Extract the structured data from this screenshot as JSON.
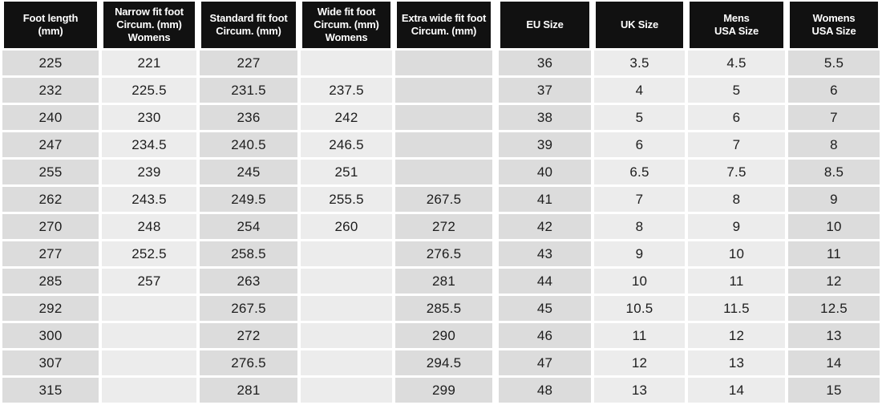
{
  "colors": {
    "page_bg": "#ffffff",
    "header_bg": "#111111",
    "header_text": "#ffffff",
    "cell_dark": "#dcdcdc",
    "cell_light": "#ececec",
    "cell_text": "#1d1d1d"
  },
  "chart_data": {
    "type": "table",
    "columns": [
      {
        "label": "Foot length\n(mm)",
        "tone": "dark"
      },
      {
        "label": "Narrow fit foot\nCircum. (mm)\nWomens",
        "tone": "light"
      },
      {
        "label": "Standard fit foot\nCircum. (mm)",
        "tone": "dark"
      },
      {
        "label": "Wide fit foot\nCircum. (mm)\nWomens",
        "tone": "light"
      },
      {
        "label": "Extra wide fit foot\nCircum. (mm)",
        "tone": "dark"
      },
      {
        "label": "EU Size",
        "tone": "dark"
      },
      {
        "label": "UK Size",
        "tone": "light"
      },
      {
        "label": "Mens\nUSA Size",
        "tone": "light"
      },
      {
        "label": "Womens\nUSA Size",
        "tone": "dark"
      }
    ],
    "rows": [
      [
        "225",
        "221",
        "227",
        "",
        "",
        "36",
        "3.5",
        "4.5",
        "5.5"
      ],
      [
        "232",
        "225.5",
        "231.5",
        "237.5",
        "",
        "37",
        "4",
        "5",
        "6"
      ],
      [
        "240",
        "230",
        "236",
        "242",
        "",
        "38",
        "5",
        "6",
        "7"
      ],
      [
        "247",
        "234.5",
        "240.5",
        "246.5",
        "",
        "39",
        "6",
        "7",
        "8"
      ],
      [
        "255",
        "239",
        "245",
        "251",
        "",
        "40",
        "6.5",
        "7.5",
        "8.5"
      ],
      [
        "262",
        "243.5",
        "249.5",
        "255.5",
        "267.5",
        "41",
        "7",
        "8",
        "9"
      ],
      [
        "270",
        "248",
        "254",
        "260",
        "272",
        "42",
        "8",
        "9",
        "10"
      ],
      [
        "277",
        "252.5",
        "258.5",
        "",
        "276.5",
        "43",
        "9",
        "10",
        "11"
      ],
      [
        "285",
        "257",
        "263",
        "",
        "281",
        "44",
        "10",
        "11",
        "12"
      ],
      [
        "292",
        "",
        "267.5",
        "",
        "285.5",
        "45",
        "10.5",
        "11.5",
        "12.5"
      ],
      [
        "300",
        "",
        "272",
        "",
        "290",
        "46",
        "11",
        "12",
        "13"
      ],
      [
        "307",
        "",
        "276.5",
        "",
        "294.5",
        "47",
        "12",
        "13",
        "14"
      ],
      [
        "315",
        "",
        "281",
        "",
        "299",
        "48",
        "13",
        "14",
        "15"
      ]
    ]
  }
}
